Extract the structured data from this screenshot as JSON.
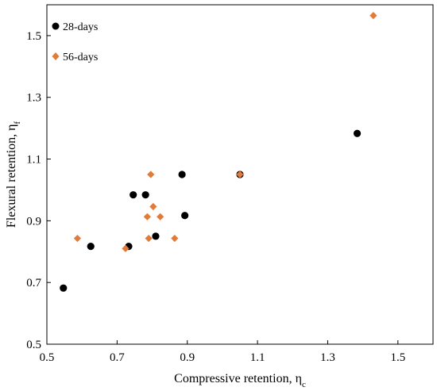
{
  "chart_data": {
    "type": "scatter",
    "xlabel": "Compressive retention, η",
    "xlabel_sub": "c",
    "ylabel": "Flexural retention, η",
    "ylabel_sub": "f",
    "xlim": [
      0.5,
      1.6
    ],
    "ylim": [
      0.5,
      1.6
    ],
    "xticks": [
      "0.5",
      "0.7",
      "0.9",
      "1.1",
      "1.3",
      "1.5"
    ],
    "yticks": [
      "0.5",
      "0.7",
      "0.9",
      "1.1",
      "1.3",
      "1.5"
    ],
    "grid": false,
    "legend_position": "top-left",
    "series": [
      {
        "name": "28-days",
        "marker": "circle",
        "color": "#000000",
        "points": [
          {
            "x": 0.547,
            "y": 0.682
          },
          {
            "x": 0.625,
            "y": 0.817
          },
          {
            "x": 0.733,
            "y": 0.817
          },
          {
            "x": 0.746,
            "y": 0.984
          },
          {
            "x": 0.781,
            "y": 0.984
          },
          {
            "x": 0.81,
            "y": 0.85
          },
          {
            "x": 0.885,
            "y": 1.05
          },
          {
            "x": 0.893,
            "y": 0.917
          },
          {
            "x": 1.05,
            "y": 1.05
          },
          {
            "x": 1.384,
            "y": 1.183
          }
        ]
      },
      {
        "name": "56-days",
        "marker": "diamond",
        "color": "#E07B39",
        "points": [
          {
            "x": 0.587,
            "y": 0.843
          },
          {
            "x": 0.724,
            "y": 0.81
          },
          {
            "x": 0.786,
            "y": 0.913
          },
          {
            "x": 0.79,
            "y": 0.843
          },
          {
            "x": 0.796,
            "y": 1.05
          },
          {
            "x": 0.803,
            "y": 0.946
          },
          {
            "x": 0.823,
            "y": 0.913
          },
          {
            "x": 0.864,
            "y": 0.843
          },
          {
            "x": 1.05,
            "y": 1.05
          },
          {
            "x": 1.43,
            "y": 1.565
          }
        ]
      }
    ]
  }
}
